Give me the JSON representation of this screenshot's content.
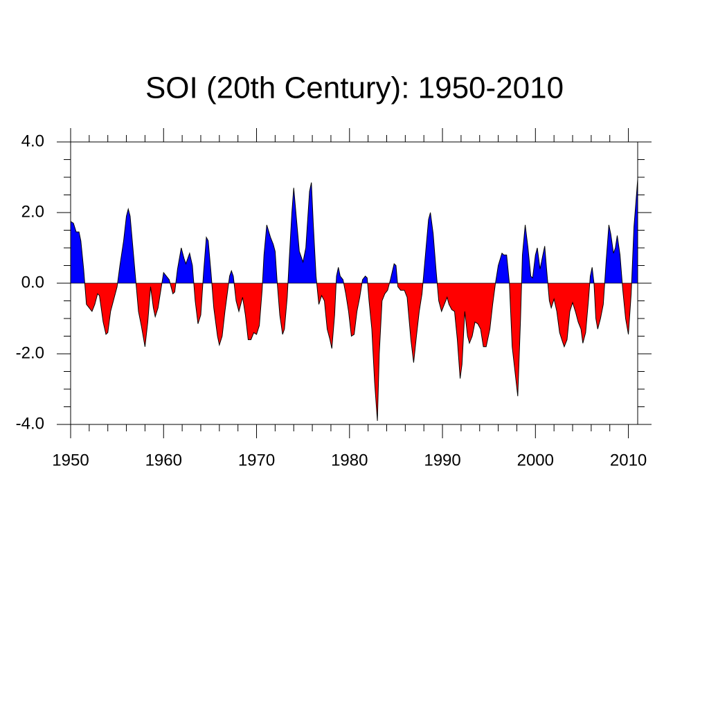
{
  "chart_data": {
    "type": "area",
    "title": "SOI (20th Century): 1950-2010",
    "x": [
      1950.0,
      1950.3,
      1950.6,
      1950.9,
      1951.1,
      1951.4,
      1951.7,
      1952.0,
      1952.3,
      1952.6,
      1952.9,
      1953.1,
      1953.5,
      1953.8,
      1954.0,
      1954.3,
      1954.7,
      1955.0,
      1955.3,
      1955.7,
      1956.0,
      1956.2,
      1956.4,
      1956.7,
      1957.0,
      1957.3,
      1957.6,
      1958.0,
      1958.3,
      1958.6,
      1958.9,
      1959.1,
      1959.4,
      1959.7,
      1960.0,
      1960.3,
      1960.6,
      1961.0,
      1961.2,
      1961.5,
      1961.9,
      1962.2,
      1962.4,
      1962.8,
      1963.1,
      1963.4,
      1963.7,
      1964.0,
      1964.3,
      1964.6,
      1964.8,
      1965.1,
      1965.4,
      1965.8,
      1966.0,
      1966.3,
      1966.6,
      1966.9,
      1967.1,
      1967.3,
      1967.5,
      1967.8,
      1968.1,
      1968.5,
      1968.8,
      1969.1,
      1969.4,
      1969.7,
      1970.0,
      1970.3,
      1970.6,
      1970.8,
      1971.1,
      1971.5,
      1971.8,
      1972.0,
      1972.2,
      1972.5,
      1972.8,
      1973.0,
      1973.3,
      1973.5,
      1973.8,
      1974.0,
      1974.3,
      1974.6,
      1975.0,
      1975.3,
      1975.7,
      1975.9,
      1976.1,
      1976.4,
      1976.7,
      1977.0,
      1977.3,
      1977.6,
      1977.9,
      1978.1,
      1978.4,
      1978.6,
      1978.8,
      1979.0,
      1979.3,
      1979.6,
      1979.9,
      1980.2,
      1980.5,
      1980.8,
      1981.1,
      1981.4,
      1981.7,
      1981.9,
      1982.1,
      1982.4,
      1982.7,
      1983.0,
      1983.2,
      1983.5,
      1983.8,
      1984.1,
      1984.4,
      1984.8,
      1985.0,
      1985.2,
      1985.5,
      1985.9,
      1986.2,
      1986.6,
      1986.9,
      1987.2,
      1987.5,
      1987.8,
      1988.2,
      1988.5,
      1988.7,
      1989.0,
      1989.3,
      1989.6,
      1989.9,
      1990.2,
      1990.5,
      1990.7,
      1991.0,
      1991.3,
      1991.6,
      1991.9,
      1992.1,
      1992.4,
      1992.7,
      1992.9,
      1993.2,
      1993.5,
      1993.8,
      1994.1,
      1994.4,
      1994.7,
      1995.1,
      1995.4,
      1995.7,
      1996.0,
      1996.4,
      1996.6,
      1996.9,
      1997.2,
      1997.5,
      1997.8,
      1998.1,
      1998.4,
      1998.6,
      1998.9,
      1999.2,
      1999.5,
      1999.7,
      2000.0,
      2000.2,
      2000.5,
      2000.8,
      2001.0,
      2001.2,
      2001.5,
      2001.7,
      2002.0,
      2002.3,
      2002.6,
      2002.9,
      2003.1,
      2003.4,
      2003.7,
      2004.0,
      2004.3,
      2004.6,
      2004.9,
      2005.1,
      2005.4,
      2005.7,
      2005.9,
      2006.1,
      2006.3,
      2006.5,
      2006.7,
      2007.0,
      2007.3,
      2007.6,
      2007.9,
      2008.1,
      2008.4,
      2008.6,
      2008.8,
      2009.1,
      2009.4,
      2009.7,
      2010.0,
      2010.3,
      2010.6,
      2010.9,
      2011.0
    ],
    "values": [
      1.75,
      1.7,
      1.45,
      1.45,
      1.2,
      0.4,
      -0.6,
      -0.7,
      -0.8,
      -0.6,
      -0.3,
      -0.35,
      -1.1,
      -1.45,
      -1.4,
      -0.8,
      -0.4,
      -0.1,
      0.5,
      1.2,
      1.9,
      2.1,
      1.9,
      1.0,
      0.1,
      -0.8,
      -1.2,
      -1.8,
      -1.1,
      -0.1,
      -0.7,
      -0.95,
      -0.7,
      -0.2,
      0.3,
      0.2,
      0.1,
      -0.3,
      -0.25,
      0.4,
      1.0,
      0.7,
      0.55,
      0.85,
      0.5,
      -0.5,
      -1.15,
      -0.9,
      0.3,
      1.3,
      1.2,
      0.3,
      -0.7,
      -1.5,
      -1.75,
      -1.5,
      -0.8,
      -0.2,
      0.2,
      0.35,
      0.2,
      -0.5,
      -0.8,
      -0.4,
      -0.9,
      -1.6,
      -1.6,
      -1.4,
      -1.45,
      -1.2,
      -0.2,
      0.8,
      1.65,
      1.3,
      1.1,
      0.9,
      0.1,
      -0.9,
      -1.45,
      -1.3,
      -0.4,
      0.6,
      2.0,
      2.7,
      1.8,
      0.9,
      0.6,
      1.0,
      2.6,
      2.85,
      1.7,
      0.2,
      -0.6,
      -0.35,
      -0.5,
      -1.3,
      -1.6,
      -1.85,
      -0.9,
      0.2,
      0.45,
      0.2,
      0.1,
      -0.3,
      -0.8,
      -1.5,
      -1.45,
      -0.8,
      -0.4,
      0.1,
      0.2,
      0.15,
      -0.5,
      -1.3,
      -2.8,
      -3.9,
      -2.0,
      -0.5,
      -0.3,
      -0.2,
      0.1,
      0.55,
      0.5,
      -0.1,
      -0.2,
      -0.2,
      -0.4,
      -1.6,
      -2.25,
      -1.5,
      -0.8,
      -0.3,
      0.9,
      1.8,
      2.0,
      1.4,
      0.4,
      -0.5,
      -0.8,
      -0.6,
      -0.4,
      -0.6,
      -0.75,
      -0.8,
      -1.6,
      -2.7,
      -2.3,
      -0.8,
      -1.5,
      -1.7,
      -1.5,
      -1.1,
      -1.15,
      -1.3,
      -1.8,
      -1.8,
      -1.3,
      -0.6,
      0.0,
      0.5,
      0.85,
      0.8,
      0.8,
      0.0,
      -1.8,
      -2.5,
      -3.2,
      -1.0,
      0.8,
      1.65,
      1.0,
      0.2,
      0.15,
      0.8,
      1.0,
      0.4,
      0.8,
      1.05,
      0.4,
      -0.5,
      -0.7,
      -0.45,
      -0.8,
      -1.4,
      -1.65,
      -1.8,
      -1.6,
      -0.8,
      -0.55,
      -0.8,
      -1.1,
      -1.3,
      -1.7,
      -1.4,
      -0.5,
      0.2,
      0.45,
      0.0,
      -1.0,
      -1.3,
      -1.0,
      -0.6,
      0.6,
      1.65,
      1.4,
      0.85,
      1.0,
      1.35,
      0.8,
      -0.2,
      -1.0,
      -1.45,
      -0.3,
      1.6,
      2.6,
      2.95
    ],
    "above_color": "#0000ff",
    "below_color": "#ff0000",
    "xlim": [
      1950,
      2011
    ],
    "xticks": [
      1950,
      1960,
      1970,
      1980,
      1990,
      2000,
      2010
    ],
    "ylim": [
      -4,
      4
    ],
    "yticks": [
      {
        "value": -4,
        "label": "-4.0"
      },
      {
        "value": -2,
        "label": "-2.0"
      },
      {
        "value": 0,
        "label": "0.0"
      },
      {
        "value": 2,
        "label": "2.0"
      },
      {
        "value": 4,
        "label": "4.0"
      }
    ]
  }
}
